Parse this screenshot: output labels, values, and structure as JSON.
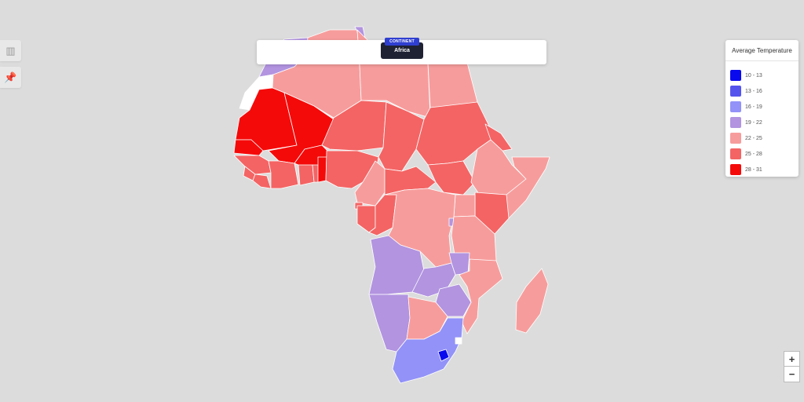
{
  "header": {
    "tag": "CONTINENT",
    "value": "Africa"
  },
  "legend": {
    "title": "Average Temperature",
    "items": [
      {
        "label": "10 - 13",
        "color": "#0a0aee"
      },
      {
        "label": "13 - 16",
        "color": "#5555ee"
      },
      {
        "label": "16 - 19",
        "color": "#9292f8"
      },
      {
        "label": "19 - 22",
        "color": "#b294e0"
      },
      {
        "label": "22 - 25",
        "color": "#f79c9c"
      },
      {
        "label": "25 - 28",
        "color": "#f46464"
      },
      {
        "label": "28 - 31",
        "color": "#f50a0a"
      }
    ]
  },
  "side_buttons": {
    "chart_icon": "bar-chart-icon",
    "pin_icon": "pin-icon"
  },
  "zoom": {
    "in": "+",
    "out": "−"
  },
  "colors": {
    "background": "#dcdcdc",
    "border": "#ffffff",
    "no_data": "#ffffff"
  }
}
